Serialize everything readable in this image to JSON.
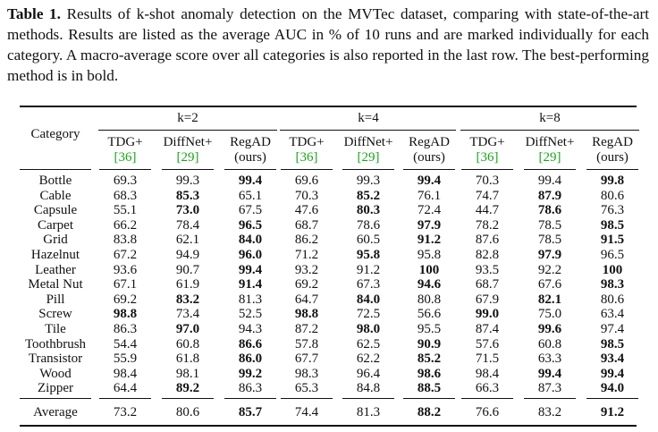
{
  "caption": {
    "label": "Table 1.",
    "text": "Results of k-shot anomaly detection on the MVTec dataset, comparing with state-of-the-art methods. Results are listed as the average AUC in % of 10 runs and are marked individually for each category. A macro-average score over all categories is also reported in the last row. The best-performing method is in bold."
  },
  "table": {
    "category_header": "Category",
    "groups": [
      "k=2",
      "k=4",
      "k=8"
    ],
    "methods": [
      {
        "name": "TDG+",
        "note": "[36]"
      },
      {
        "name": "DiffNet+",
        "note": "[29]"
      },
      {
        "name": "RegAD",
        "note": "(ours)"
      }
    ],
    "rows": [
      {
        "category": "Bottle",
        "values": [
          "69.3",
          "99.3",
          "99.4",
          "69.6",
          "99.3",
          "99.4",
          "70.3",
          "99.4",
          "99.8"
        ],
        "best": [
          2,
          5,
          8
        ]
      },
      {
        "category": "Cable",
        "values": [
          "68.3",
          "85.3",
          "65.1",
          "70.3",
          "85.2",
          "76.1",
          "74.7",
          "87.9",
          "80.6"
        ],
        "best": [
          1,
          4,
          7
        ]
      },
      {
        "category": "Capsule",
        "values": [
          "55.1",
          "73.0",
          "67.5",
          "47.6",
          "80.3",
          "72.4",
          "44.7",
          "78.6",
          "76.3"
        ],
        "best": [
          1,
          4,
          7
        ]
      },
      {
        "category": "Carpet",
        "values": [
          "66.2",
          "78.4",
          "96.5",
          "68.7",
          "78.6",
          "97.9",
          "78.2",
          "78.5",
          "98.5"
        ],
        "best": [
          2,
          5,
          8
        ]
      },
      {
        "category": "Grid",
        "values": [
          "83.8",
          "62.1",
          "84.0",
          "86.2",
          "60.5",
          "91.2",
          "87.6",
          "78.5",
          "91.5"
        ],
        "best": [
          2,
          5,
          8
        ]
      },
      {
        "category": "Hazelnut",
        "values": [
          "67.2",
          "94.9",
          "96.0",
          "71.2",
          "95.8",
          "95.8",
          "82.8",
          "97.9",
          "96.5"
        ],
        "best": [
          2,
          4,
          7
        ]
      },
      {
        "category": "Leather",
        "values": [
          "93.6",
          "90.7",
          "99.4",
          "93.2",
          "91.2",
          "100",
          "93.5",
          "92.2",
          "100"
        ],
        "best": [
          2,
          5,
          8
        ]
      },
      {
        "category": "Metal Nut",
        "values": [
          "67.1",
          "61.9",
          "91.4",
          "69.2",
          "67.3",
          "94.6",
          "68.7",
          "67.6",
          "98.3"
        ],
        "best": [
          2,
          5,
          8
        ]
      },
      {
        "category": "Pill",
        "values": [
          "69.2",
          "83.2",
          "81.3",
          "64.7",
          "84.0",
          "80.8",
          "67.9",
          "82.1",
          "80.6"
        ],
        "best": [
          1,
          4,
          7
        ]
      },
      {
        "category": "Screw",
        "values": [
          "98.8",
          "73.4",
          "52.5",
          "98.8",
          "72.5",
          "56.6",
          "99.0",
          "75.0",
          "63.4"
        ],
        "best": [
          0,
          3,
          6
        ]
      },
      {
        "category": "Tile",
        "values": [
          "86.3",
          "97.0",
          "94.3",
          "87.2",
          "98.0",
          "95.5",
          "87.4",
          "99.6",
          "97.4"
        ],
        "best": [
          1,
          4,
          7
        ]
      },
      {
        "category": "Toothbrush",
        "values": [
          "54.4",
          "60.8",
          "86.6",
          "57.8",
          "62.5",
          "90.9",
          "57.6",
          "60.8",
          "98.5"
        ],
        "best": [
          2,
          5,
          8
        ]
      },
      {
        "category": "Transistor",
        "values": [
          "55.9",
          "61.8",
          "86.0",
          "67.7",
          "62.2",
          "85.2",
          "71.5",
          "63.3",
          "93.4"
        ],
        "best": [
          2,
          5,
          8
        ]
      },
      {
        "category": "Wood",
        "values": [
          "98.4",
          "98.1",
          "99.2",
          "98.3",
          "96.4",
          "98.6",
          "98.4",
          "99.4",
          "99.4"
        ],
        "best": [
          2,
          5,
          7,
          8
        ]
      },
      {
        "category": "Zipper",
        "values": [
          "64.4",
          "89.2",
          "86.3",
          "65.3",
          "84.8",
          "88.5",
          "66.3",
          "87.3",
          "94.0"
        ],
        "best": [
          1,
          5,
          8
        ]
      }
    ],
    "average": {
      "category": "Average",
      "values": [
        "73.2",
        "80.6",
        "85.7",
        "74.4",
        "81.3",
        "88.2",
        "76.6",
        "83.2",
        "91.2"
      ],
      "best": [
        2,
        5,
        8
      ]
    }
  }
}
